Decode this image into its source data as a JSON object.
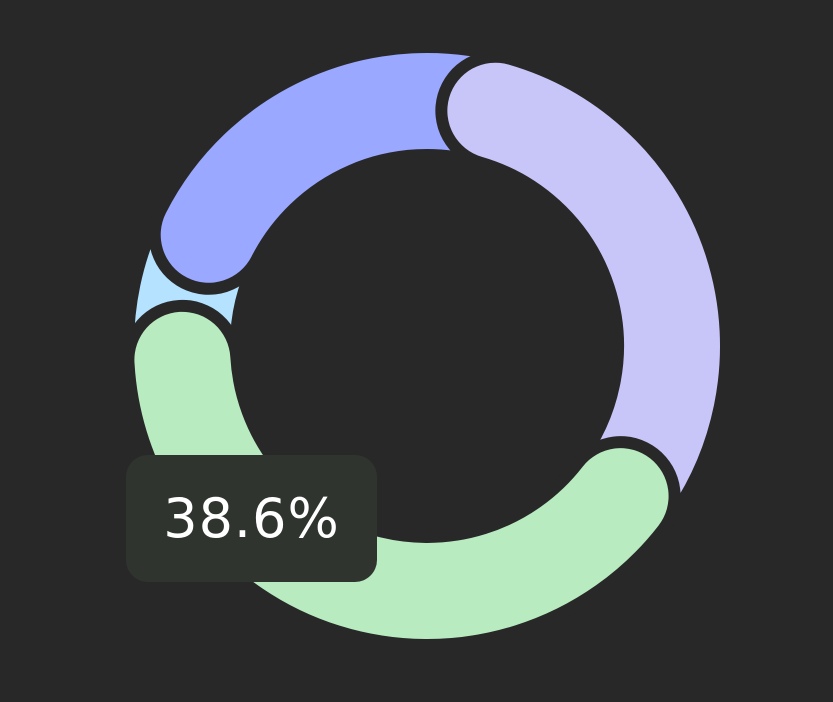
{
  "chart_data": {
    "type": "pie",
    "variant": "donut",
    "legend": "none",
    "slices": [
      {
        "label": "",
        "value": 22.0,
        "color": "#9aa8ff"
      },
      {
        "label": "",
        "value": 31.0,
        "color": "#c8c5f8"
      },
      {
        "label": "",
        "value": 38.6,
        "color": "#b9ebc1"
      },
      {
        "label": "",
        "value": 8.4,
        "color": "#b4e2ff"
      }
    ],
    "highlighted_slice": 2,
    "tooltip": {
      "text": "38.6%"
    }
  }
}
